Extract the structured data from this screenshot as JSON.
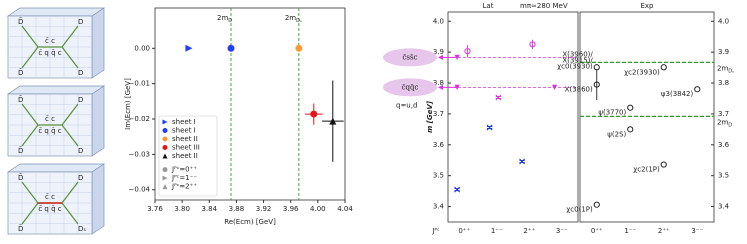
{
  "diagrams": [
    {
      "top": [
        "D̄",
        "D"
      ],
      "center": [
        "c̄ c",
        "c̄ q q̄ c"
      ],
      "bottom": [
        "D̄",
        "D"
      ]
    },
    {
      "top": [
        "D̄",
        "D"
      ],
      "center": [
        "c̄ c",
        "c̄ q q̄ c"
      ],
      "bottom": [
        "D̄",
        "D"
      ]
    },
    {
      "top": [
        "D̄",
        "D"
      ],
      "center": [
        "c̄ c",
        "c̄ q q̄ c"
      ],
      "bottom": [
        "D̄",
        "Dₛ"
      ]
    }
  ],
  "chart_data": [
    {
      "type": "scatter",
      "xlabel": "Re(Ecm) [GeV]",
      "ylabel": "Im(Ecm) [GeV]",
      "xlim": [
        3.76,
        4.04
      ],
      "xticks": [
        3.76,
        {
          "value": 3.8,
          "label": "3.80"
        },
        3.84,
        3.88,
        3.92,
        3.96,
        {
          "value": 4.0,
          "label": "4.00"
        },
        4.04
      ],
      "ylim": [
        -0.0429,
        0.0114
      ],
      "yticks": [
        {
          "value": 0,
          "label": "0.00"
        },
        {
          "value": -0.01,
          "label": "−0.01"
        },
        {
          "value": -0.02,
          "label": "−0.02"
        },
        {
          "value": -0.03,
          "label": "−0.03"
        },
        {
          "value": -0.04,
          "label": "−0.04"
        }
      ],
      "thresholds": [
        {
          "value": 3.872,
          "label": "2m",
          "sub": "D",
          "color": "#2ca02c"
        },
        {
          "value": 3.972,
          "label": "2m",
          "sub": "Dₛ",
          "color": "#2ca02c"
        }
      ],
      "series": [
        {
          "name": "sheet I",
          "color": "#1f3fff",
          "marker": "triangle-right",
          "x": [
            3.81
          ],
          "values": [
            0
          ]
        },
        {
          "name": "sheet I",
          "color": "#1f3fff",
          "marker": "circle",
          "x": [
            3.872
          ],
          "values": [
            0
          ]
        },
        {
          "name": "sheet II",
          "color": "#ff9933",
          "marker": "circle",
          "x": [
            3.972
          ],
          "values": [
            0
          ]
        },
        {
          "name": "sheet III",
          "color": "#e8141c",
          "marker": "circle",
          "x": [
            3.994
          ],
          "values": [
            -0.0186
          ],
          "xerr": [
            0.013
          ],
          "yerr": [
            0.003
          ]
        },
        {
          "name": "sheet II",
          "color": "#111111",
          "marker": "triangle-up",
          "x": [
            4.022
          ],
          "values": [
            -0.0206
          ],
          "xerr": [
            0.016
          ],
          "yerr": [
            0.0115
          ]
        }
      ],
      "shape_legend": [
        {
          "label": "Jᴾᶜ=0⁺⁺",
          "marker": "circle"
        },
        {
          "label": "Jᴾᶜ=1⁻⁻",
          "marker": "triangle-right"
        },
        {
          "label": "Jᴾᶜ=2⁺⁺",
          "marker": "triangle-up"
        }
      ]
    },
    {
      "type": "dot",
      "ylabel": "m [GeV]",
      "xlabel": "Jᴾᶜ",
      "ylim": [
        3.35,
        4.03
      ],
      "yticks": [
        3.4,
        3.5,
        3.6,
        3.7,
        3.8,
        3.9,
        {
          "value": 4.0,
          "label": "4.0"
        }
      ],
      "tags": [
        {
          "text": "c̄ss̄c",
          "value": 3.883
        },
        {
          "text": "c̄qq̄c",
          "value": 3.786
        }
      ],
      "note": "q=u,d",
      "thresholds": [
        {
          "value": 3.867,
          "label": "2m",
          "sub": "Dₛ",
          "color": "#2ca02c"
        },
        {
          "value": 3.692,
          "label": "2m",
          "sub": "D",
          "color": "#2ca02c"
        }
      ],
      "panels": [
        {
          "title": "Lat",
          "subtitle": "mπ≃280 MeV",
          "categories": [
            "0⁺⁺",
            "1⁻⁻",
            "2⁺⁺",
            "3⁻⁻"
          ],
          "series": [
            {
              "color": "#2233dd",
              "marker": "x",
              "x": [
                "0⁺⁺",
                "1⁻⁻",
                "2⁺⁺"
              ],
              "values": [
                3.455,
                3.656,
                3.546
              ]
            },
            {
              "color": "#dd33dd",
              "marker": "triangle-down",
              "x": [
                "0⁺⁺",
                "0⁺⁺",
                "3⁻⁻"
              ],
              "values": [
                3.786,
                3.883,
                3.786
              ]
            },
            {
              "color": "#dd33dd",
              "marker": "x",
              "x": [
                "1⁻⁻"
              ],
              "values": [
                3.753
              ]
            },
            {
              "color": "#dd33dd",
              "marker": "circle-open",
              "x": [
                "0⁺⁺",
                "2⁺⁺"
              ],
              "values": [
                3.903,
                3.925
              ],
              "yerr": [
                0.02,
                0.015
              ]
            }
          ]
        },
        {
          "title": "Exp",
          "categories": [
            "0⁺⁺",
            "1⁻⁻",
            "2⁺⁺",
            "3⁻⁻"
          ],
          "series": [
            {
              "color": "#222222",
              "marker": "circle-open",
              "x": [
                "0⁺⁺",
                "0⁺⁺",
                "0⁺⁺",
                "1⁻⁻",
                "1⁻⁻",
                "2⁺⁺",
                "2⁺⁺",
                "3⁻⁻"
              ],
              "values": [
                3.406,
                3.795,
                3.851,
                3.65,
                3.72,
                3.536,
                3.851,
                3.78
              ],
              "yerr": [
                null,
                0.05,
                null,
                null,
                null,
                null,
                null,
                null
              ],
              "labels": [
                [
                  "χc0(1P)"
                ],
                [
                  "X(3860)"
                ],
                [
                  "X(3960)/",
                  "X(3915)/",
                  "χc0(3930)"
                ],
                [
                  "ψ(2S)"
                ],
                [
                  "ψ(3770)"
                ],
                [
                  "χc2(1P)"
                ],
                [
                  "χc2(3930)"
                ],
                [
                  "ψ3(3842)"
                ]
              ]
            }
          ]
        }
      ]
    }
  ]
}
